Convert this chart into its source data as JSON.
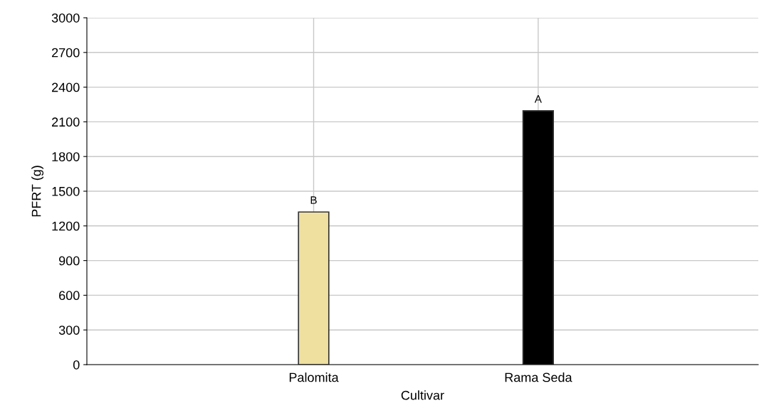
{
  "chart_data": {
    "type": "bar",
    "xlabel": "Cultivar",
    "ylabel": "PFRT (g)",
    "categories": [
      "Palomita",
      "Rama Seda"
    ],
    "values": [
      1320,
      2195
    ],
    "colors": [
      "#efe0a0",
      "#000000"
    ],
    "ylim": [
      0,
      3000
    ],
    "yticks": [
      0,
      300,
      600,
      900,
      1200,
      1500,
      1800,
      2100,
      2400,
      2700,
      3000
    ],
    "grid": true,
    "legend": false,
    "annotations": [
      {
        "text": "B",
        "x": "Palomita",
        "y": 1320
      },
      {
        "text": "A",
        "x": "Rama Seda",
        "y": 2195
      }
    ]
  }
}
